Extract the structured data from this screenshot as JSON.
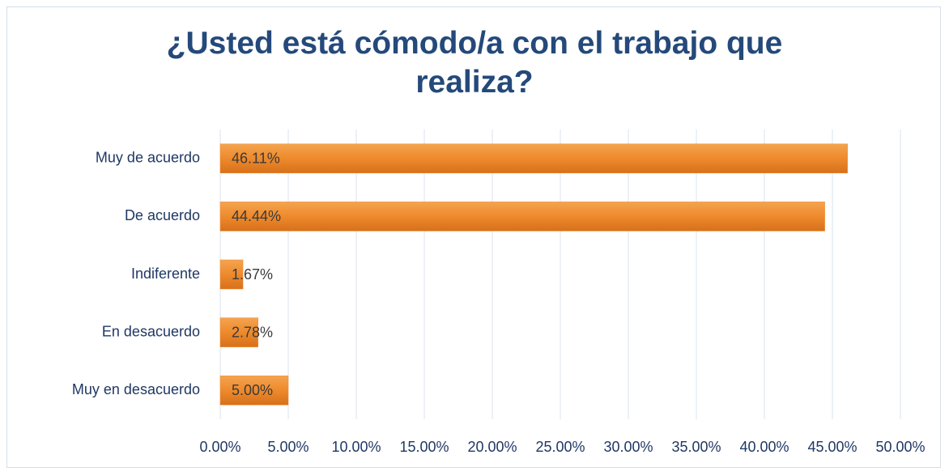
{
  "chart_data": {
    "type": "bar",
    "orientation": "horizontal",
    "title": "¿Usted está cómodo/a con el trabajo que realiza?",
    "categories": [
      "Muy de acuerdo",
      "De acuerdo",
      "Indiferente",
      "En desacuerdo",
      "Muy en desacuerdo"
    ],
    "values": [
      46.11,
      44.44,
      1.67,
      2.78,
      5.0
    ],
    "value_labels": [
      "46.11%",
      "44.44%",
      "1.67%",
      "2.78%",
      "5.00%"
    ],
    "color": "#ee8a2c",
    "xlim": [
      0,
      50
    ],
    "xticks": [
      {
        "value": 0,
        "label": "0.00%"
      },
      {
        "value": 5,
        "label": "5.00%"
      },
      {
        "value": 10,
        "label": "10.00%"
      },
      {
        "value": 15,
        "label": "15.00%"
      },
      {
        "value": 20,
        "label": "20.00%"
      },
      {
        "value": 25,
        "label": "25.00%"
      },
      {
        "value": 30,
        "label": "30.00%"
      },
      {
        "value": 35,
        "label": "35.00%"
      },
      {
        "value": 40,
        "label": "40.00%"
      },
      {
        "value": 45,
        "label": "45.00%"
      },
      {
        "value": 50,
        "label": "50.00%"
      }
    ],
    "grid": true
  }
}
